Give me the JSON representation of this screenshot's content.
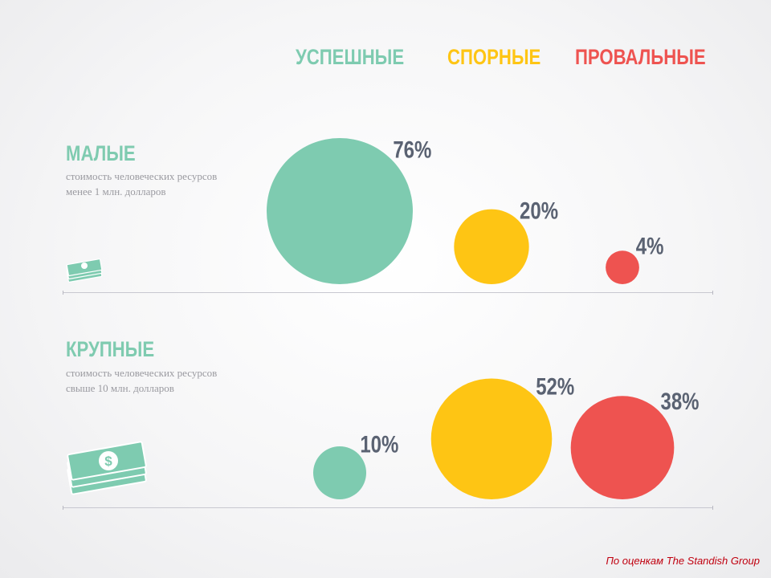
{
  "chart_data": {
    "type": "bubble",
    "categories": [
      "УСПЕШНЫЕ",
      "СПОРНЫЕ",
      "ПРОВАЛЬНЫЕ"
    ],
    "category_colors": [
      "#7ecbb0",
      "#fec514",
      "#ee5350"
    ],
    "label_colors": [
      "#7ecbb0",
      "#fec514",
      "#ee5350"
    ],
    "unit": "%",
    "groups": [
      {
        "name": "МАЛЫЕ",
        "description_lines": [
          "стоимость человеческих ресурсов",
          "менее 1 млн. долларов"
        ],
        "values": [
          76,
          20,
          4
        ],
        "labels": [
          "76%",
          "20%",
          "4%"
        ]
      },
      {
        "name": "КРУПНЫЕ",
        "description_lines": [
          "стоимость человеческих ресурсов",
          "свыше 10 млн. долларов"
        ],
        "values": [
          10,
          52,
          38
        ],
        "labels": [
          "10%",
          "52%",
          "38%"
        ]
      }
    ]
  },
  "source": "По оценкам  The Standish Group",
  "colors": {
    "text_value": "#5a6272",
    "money_icon": "#7ecbb0"
  },
  "icons": [
    "money-stack-small-icon",
    "money-stack-large-icon"
  ]
}
